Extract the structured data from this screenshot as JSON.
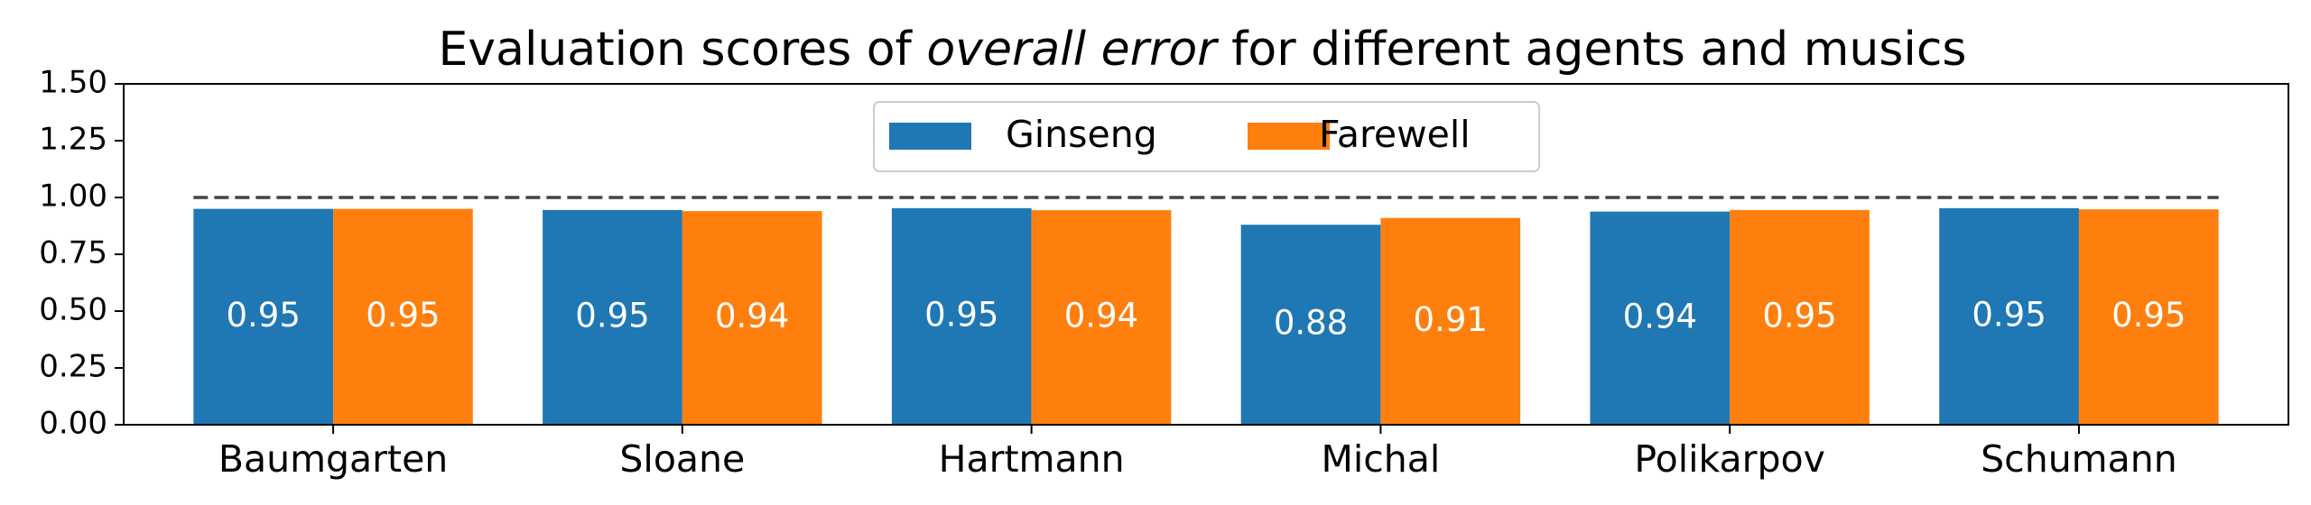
{
  "chart_data": {
    "type": "bar",
    "title_prefix": "Evaluation scores of ",
    "title_emphasis": "overall error",
    "title_suffix": " for different agents and musics",
    "categories": [
      "Baumgarten",
      "Sloane",
      "Hartmann",
      "Michal",
      "Polikarpov",
      "Schumann"
    ],
    "series": [
      {
        "name": "Ginseng",
        "color": "#1f77b4",
        "values": [
          0.95,
          0.945,
          0.953,
          0.88,
          0.938,
          0.953
        ]
      },
      {
        "name": "Farewell",
        "color": "#ff7f0e",
        "values": [
          0.95,
          0.94,
          0.944,
          0.91,
          0.945,
          0.948
        ]
      }
    ],
    "bar_labels": [
      [
        "0.95",
        "0.95",
        "0.95",
        "0.88",
        "0.94",
        "0.95"
      ],
      [
        "0.95",
        "0.94",
        "0.94",
        "0.91",
        "0.95",
        "0.95"
      ]
    ],
    "ylim": [
      0,
      1.5
    ],
    "yticks": [
      "0.00",
      "0.25",
      "0.50",
      "0.75",
      "1.00",
      "1.25",
      "1.50"
    ],
    "reference_line": 1.0,
    "legend_position": "top-center",
    "grid": false
  }
}
